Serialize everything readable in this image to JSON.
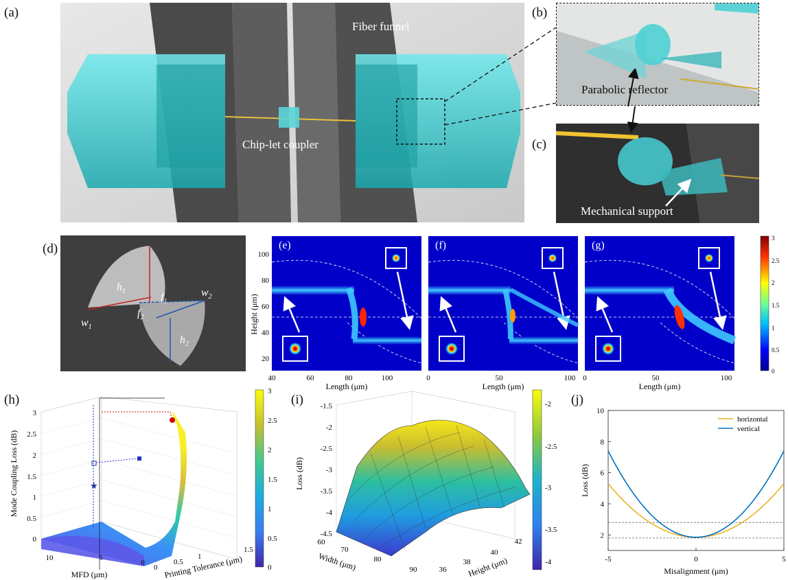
{
  "panels": {
    "a": {
      "letter": "(a)",
      "labels": [
        "Fiber funnel",
        "Chip-let coupler"
      ]
    },
    "b": {
      "letter": "(b)",
      "labels": [
        "Parabolic reflector"
      ]
    },
    "c": {
      "letter": "(c)",
      "labels": [
        "Mechanical support"
      ]
    },
    "d": {
      "letter": "(d)",
      "symbols": [
        "h",
        "1",
        "w",
        "1",
        "f",
        "2",
        "f",
        "1",
        "w",
        "2",
        "h",
        "2"
      ]
    },
    "e": {
      "letter": "(e)"
    },
    "f": {
      "letter": "(f)"
    },
    "g": {
      "letter": "(g)"
    },
    "h": {
      "letter": "(h)"
    },
    "i": {
      "letter": "(i)"
    },
    "j": {
      "letter": "(j)"
    }
  },
  "fields": {
    "ylabel": "Height (μm)",
    "xlabel": "Length (μm)",
    "y_ticks": [
      "100",
      "80",
      "60",
      "40",
      "20"
    ],
    "e_x_ticks": [
      "40",
      "60",
      "80",
      "100"
    ],
    "fg_x_ticks": [
      "0",
      "50",
      "100"
    ],
    "colorbar_ticks": [
      "3",
      "2.5",
      "2",
      "1.5",
      "1",
      "0.5",
      "0"
    ]
  },
  "plot_h": {
    "zlabel": "Mode Coupling Loss (dB)",
    "xlabel": "MFD (μm)",
    "ylabel": "Printing Tolerance (μm)",
    "z_ticks": [
      "3",
      "2.5",
      "2",
      "1.5",
      "1",
      "0.5",
      "0"
    ],
    "x_ticks": [
      "10",
      "5",
      "0"
    ],
    "y_ticks": [
      "0",
      "0.5",
      "1",
      "1.5"
    ],
    "colorbar_ticks": [
      "3",
      "2.5",
      "2",
      "1.5",
      "1",
      "0.5",
      "0"
    ]
  },
  "plot_i": {
    "zlabel": "Loss (dB)",
    "xlabel": "Width (μm)",
    "ylabel": "Height (μm)",
    "z_ticks": [
      "-1.5",
      "-2",
      "-2.5",
      "-3",
      "-3.5",
      "-4",
      "-4.5"
    ],
    "x_ticks": [
      "60",
      "70",
      "80",
      "90"
    ],
    "y_ticks": [
      "36",
      "38",
      "40",
      "42"
    ],
    "colorbar_ticks": [
      "-2",
      "-2.5",
      "-3",
      "-3.5",
      "-4"
    ]
  },
  "chart_data": {
    "type": "line",
    "xlabel": "Misalignment (μm)",
    "ylabel": "Loss (dB)",
    "xlim": [
      -5,
      5
    ],
    "ylim": [
      1,
      10
    ],
    "x_ticks": [
      "-5",
      "0",
      "5"
    ],
    "y_ticks": [
      "10",
      "8",
      "6",
      "4",
      "2"
    ],
    "x": [
      -5,
      -4,
      -3,
      -2,
      -1,
      0,
      1,
      2,
      3,
      4,
      5
    ],
    "series": [
      {
        "name": "horizontal",
        "color": "#EDB120",
        "values": [
          5.3,
          4.2,
          3.2,
          2.5,
          2.0,
          1.85,
          2.0,
          2.5,
          3.2,
          4.2,
          5.3
        ]
      },
      {
        "name": "vertical",
        "color": "#0072BD",
        "values": [
          7.4,
          5.6,
          4.1,
          2.9,
          2.1,
          1.85,
          2.1,
          2.9,
          4.1,
          5.6,
          7.4
        ]
      }
    ],
    "reference_lines": [
      2.8,
      1.8
    ],
    "legend": "top-right",
    "grid": false
  }
}
